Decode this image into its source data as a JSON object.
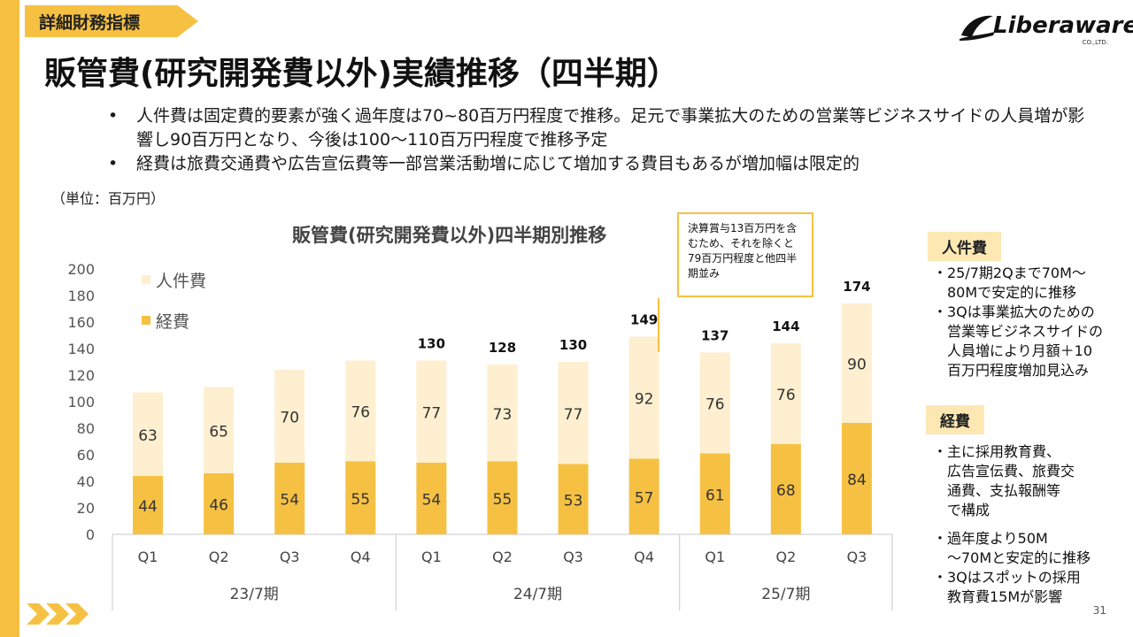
{
  "header": {
    "section_tag": "詳細財務指標",
    "title": "販管費(研究開発費以外)実績推移（四半期）",
    "logo_text": "Liberaware",
    "logo_sub": "CO.,LTD."
  },
  "bullets": [
    "人件費は固定費的要素が強く過年度は70~80百万円程度で推移。足元で事業拡大のための営業等ビジネスサイドの人員増が影響し90百万円となり、今後は100〜110百万円程度で推移予定",
    "経費は旅費交通費や広告宣伝費等一部営業活動増に応じて増加する費目もあるが増加幅は限定的"
  ],
  "unit_note": "（単位：百万円）",
  "callout": "決算賞与13百万円を含むため、それを除くと79百万円程度と他四半期並み",
  "right_panel": {
    "personnel_tag": "人件費",
    "personnel_text": "・25/7期2Qまで70M〜\n　80Mで安定的に推移\n・3Qは事業拡大のための\n　営業等ビジネスサイドの\n　人員増により月額＋10\n　百万円程度増加見込み",
    "expense_tag": "経費",
    "expense_text_1": "・主に採用教育費、\n　広告宣伝費、旅費交\n　通費、支払報酬等\n　で構成",
    "expense_text_2": "・過年度より50M\n　〜70Mと安定的に推移\n・3Qはスポットの採用\n　教育費15Mが影響"
  },
  "page_number": "31",
  "colors": {
    "accent": "#f6c142",
    "personnel": "#fdefcf",
    "expense": "#f6c142"
  },
  "chart_data": {
    "type": "bar",
    "stacked": true,
    "title": "販管費(研究開発費以外)四半期別推移",
    "categories": [
      "Q1",
      "Q2",
      "Q3",
      "Q4",
      "Q1",
      "Q2",
      "Q3",
      "Q4",
      "Q1",
      "Q2",
      "Q3"
    ],
    "groups": [
      {
        "label": "23/7期",
        "count": 4
      },
      {
        "label": "24/7期",
        "count": 4
      },
      {
        "label": "25/7期",
        "count": 3
      }
    ],
    "series": [
      {
        "name": "経費",
        "color": "#f6c142",
        "values": [
          44,
          46,
          54,
          55,
          54,
          55,
          53,
          57,
          61,
          68,
          84
        ]
      },
      {
        "name": "人件費",
        "color": "#fdefcf",
        "values": [
          63,
          65,
          70,
          76,
          77,
          73,
          77,
          92,
          76,
          76,
          90
        ]
      }
    ],
    "totals": [
      "",
      "",
      "",
      "",
      "130",
      "128",
      "130",
      "149",
      "137",
      "144",
      "174"
    ],
    "yticks": [
      0,
      20,
      40,
      60,
      80,
      100,
      120,
      140,
      160,
      180,
      200
    ],
    "ylim": [
      0,
      200
    ],
    "grid": false,
    "legend_position": "top-left"
  }
}
